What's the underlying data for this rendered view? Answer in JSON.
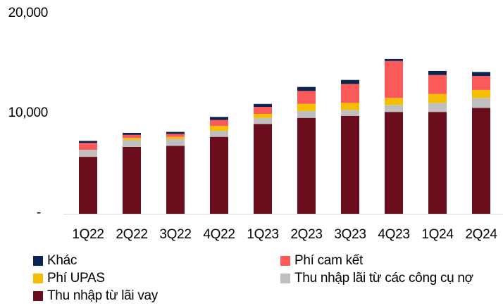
{
  "chart_data": {
    "type": "bar",
    "stacked": true,
    "categories": [
      "1Q22",
      "2Q22",
      "3Q22",
      "4Q22",
      "1Q23",
      "2Q23",
      "3Q23",
      "4Q23",
      "1Q24",
      "2Q24"
    ],
    "y_tick_labels": [
      "20,000",
      "10,000",
      "-"
    ],
    "y_ticks": [
      20000,
      10000,
      0
    ],
    "ylim": [
      0,
      20000
    ],
    "grid": false,
    "legend_position": "bottom",
    "series": [
      {
        "name": "Thu nhập từ lãi vay",
        "color": "#6b0d1c",
        "values": [
          5700,
          6700,
          6800,
          7700,
          9000,
          9600,
          9800,
          10200,
          10200,
          10600
        ]
      },
      {
        "name": "Thu nhập lãi từ các công cụ nợ",
        "color": "#bfbfbf",
        "values": [
          700,
          700,
          700,
          600,
          600,
          700,
          600,
          700,
          900,
          1000
        ]
      },
      {
        "name": "Phí UPAS",
        "color": "#f5bf00",
        "values": [
          0,
          200,
          200,
          500,
          400,
          700,
          700,
          700,
          900,
          800
        ]
      },
      {
        "name": "Phí cam kết",
        "color": "#fb5a5a",
        "values": [
          700,
          300,
          300,
          600,
          700,
          1300,
          1900,
          3700,
          1900,
          1400
        ]
      },
      {
        "name": "Khác",
        "color": "#0c2453",
        "values": [
          200,
          200,
          200,
          300,
          300,
          400,
          400,
          200,
          400,
          400
        ]
      }
    ],
    "legend_rows": [
      [
        {
          "label": "Khác",
          "color": "#0c2453"
        },
        {
          "label": "Phí cam kết",
          "color": "#fb5a5a"
        }
      ],
      [
        {
          "label": "Phí UPAS",
          "color": "#f5bf00"
        },
        {
          "label": "Thu nhập lãi từ các công cụ nợ",
          "color": "#bfbfbf"
        }
      ],
      [
        {
          "label": "Thu nhập từ lãi vay",
          "color": "#6b0d1c"
        }
      ]
    ]
  }
}
